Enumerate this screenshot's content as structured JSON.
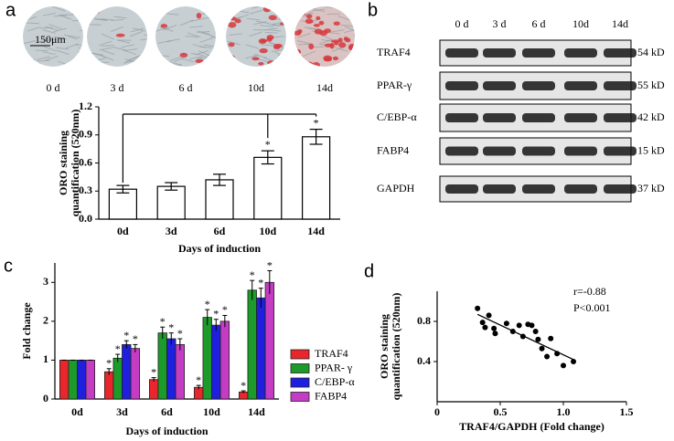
{
  "panel_labels": [
    "a",
    "b",
    "c",
    "d"
  ],
  "micrographs": {
    "labels": [
      "0 d",
      "3 d",
      "6 d",
      "10d",
      "14d"
    ],
    "scale_bar": "150μm"
  },
  "western_blot": {
    "lanes": [
      "0 d",
      "3 d",
      "6 d",
      "10d",
      "14d"
    ],
    "proteins": [
      "TRAF4",
      "PPAR-γ",
      "C/EBP-α",
      "FABP4",
      "GAPDH"
    ],
    "sizes": [
      "54 kD",
      "55 kD",
      "42 kD",
      "15 kD",
      "37 kD"
    ]
  },
  "chart_data": [
    {
      "type": "bar",
      "categories": [
        "0d",
        "3d",
        "6d",
        "10d",
        "14d"
      ],
      "values": [
        0.32,
        0.35,
        0.42,
        0.66,
        0.88
      ],
      "errors": [
        0.04,
        0.04,
        0.06,
        0.07,
        0.08
      ],
      "color": "#ffffff",
      "ylim": [
        0,
        1.2
      ],
      "yticks": [
        {
          "value": 0,
          "label": "0.0"
        },
        0.3,
        0.6,
        0.9,
        1.2
      ],
      "ylabel": [
        "ORO staining",
        "quantification (520nm)"
      ],
      "xlabel": "Days of induction",
      "annotations": [
        {
          "category": "10d",
          "text": "*"
        },
        {
          "category": "14d",
          "text": "*"
        }
      ]
    },
    {
      "type": "grouped_bar",
      "categories": [
        "0d",
        "3d",
        "6d",
        "10d",
        "14d"
      ],
      "series": [
        {
          "name": "TRAF4",
          "color": "#e8262b",
          "values": [
            1,
            0.7,
            0.5,
            0.3,
            0.18
          ],
          "errors": [
            0,
            0.08,
            0.05,
            0.05,
            0.03
          ],
          "significance": [
            null,
            "*",
            "*",
            "*",
            "*"
          ]
        },
        {
          "name": "PPAR- γ",
          "color": "#1c9a2a",
          "values": [
            1,
            1.05,
            1.7,
            2.1,
            2.8
          ],
          "errors": [
            0,
            0.1,
            0.15,
            0.2,
            0.25
          ],
          "significance": [
            null,
            "*",
            "*",
            "*",
            "*"
          ]
        },
        {
          "name": "C/EBP-α",
          "color": "#1f1fe0",
          "values": [
            1,
            1.4,
            1.55,
            1.9,
            2.6
          ],
          "errors": [
            0,
            0.1,
            0.15,
            0.15,
            0.25
          ],
          "significance": [
            null,
            "*",
            "*",
            "*",
            "*"
          ]
        },
        {
          "name": "FABP4",
          "color": "#c43cc4",
          "values": [
            1,
            1.3,
            1.4,
            2.0,
            3.0
          ],
          "errors": [
            0,
            0.1,
            0.15,
            0.15,
            0.3
          ],
          "significance": [
            null,
            "*",
            "*",
            "*",
            "*"
          ]
        }
      ],
      "ylim": [
        0,
        3.5
      ],
      "yticks": [
        0,
        1,
        2,
        3
      ],
      "ylabel": "Fold change",
      "xlabel": "Days of induction",
      "legend": "right"
    },
    {
      "type": "scatter",
      "x": [
        0.32,
        0.36,
        0.41,
        0.38,
        0.45,
        0.46,
        0.55,
        0.6,
        0.65,
        0.68,
        0.72,
        0.75,
        0.78,
        0.8,
        0.83,
        0.87,
        0.9,
        0.95,
        1.0,
        1.08
      ],
      "y": [
        0.93,
        0.79,
        0.86,
        0.74,
        0.73,
        0.68,
        0.78,
        0.7,
        0.76,
        0.65,
        0.77,
        0.76,
        0.7,
        0.62,
        0.53,
        0.45,
        0.63,
        0.48,
        0.36,
        0.4
      ],
      "color": "#000000",
      "fit_line": {
        "x": [
          0.32,
          1.08
        ],
        "y": [
          0.87,
          0.42
        ]
      },
      "xlim": [
        0,
        1.5
      ],
      "xticks": [
        0,
        0.5,
        {
          "value": 1,
          "label": "1.0"
        },
        1.5
      ],
      "ylim": [
        0,
        1.1
      ],
      "yticks": [
        0.4,
        0.8
      ],
      "xlabel": "TRAF4/GAPDH (Fold change)",
      "ylabel": [
        "ORO staining",
        "quantification (520nm)"
      ],
      "annotations": [
        "r=-0.88",
        "P<0.001"
      ]
    }
  ]
}
